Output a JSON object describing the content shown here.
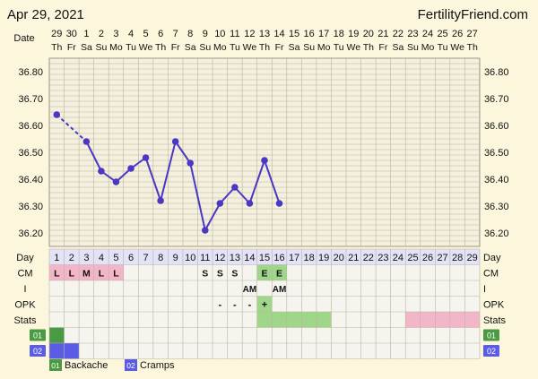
{
  "header": {
    "date_text": "Apr 29, 2021",
    "site": "FertilityFriend.com",
    "date_label": "Date"
  },
  "days": {
    "dates": [
      "29",
      "30",
      "1",
      "2",
      "3",
      "4",
      "5",
      "6",
      "7",
      "8",
      "9",
      "10",
      "11",
      "12",
      "13",
      "14",
      "15",
      "16",
      "17",
      "18",
      "19",
      "20",
      "21",
      "22",
      "23",
      "24",
      "25",
      "26",
      "27"
    ],
    "weekdays": [
      "Th",
      "Fr",
      "Sa",
      "Su",
      "Mo",
      "Tu",
      "We",
      "Th",
      "Fr",
      "Sa",
      "Su",
      "Mo",
      "Tu",
      "We",
      "Th",
      "Fr",
      "Sa",
      "Su",
      "Mo",
      "Tu",
      "We",
      "Th",
      "Fr",
      "Sa",
      "Su",
      "Mo",
      "Tu",
      "We",
      "Th"
    ],
    "cycle_days": [
      "1",
      "2",
      "3",
      "4",
      "5",
      "6",
      "7",
      "8",
      "9",
      "10",
      "11",
      "12",
      "13",
      "14",
      "15",
      "16",
      "17",
      "18",
      "19",
      "20",
      "21",
      "22",
      "23",
      "24",
      "25",
      "26",
      "27",
      "28",
      "29"
    ]
  },
  "chart_data": {
    "type": "line",
    "ylim": [
      36.15,
      36.85
    ],
    "y_ticks": [
      "36.80",
      "36.70",
      "36.60",
      "36.50",
      "36.40",
      "36.30",
      "36.20"
    ],
    "y_tick_values": [
      36.8,
      36.7,
      36.6,
      36.5,
      36.4,
      36.3,
      36.2
    ],
    "series": [
      {
        "x": [
          1,
          3,
          4,
          5,
          6,
          7,
          8,
          9,
          10,
          11,
          12,
          13,
          14,
          15,
          16
        ],
        "values": [
          36.64,
          36.54,
          36.43,
          36.39,
          36.44,
          36.48,
          36.32,
          36.54,
          36.46,
          36.21,
          36.31,
          36.37,
          36.31,
          36.47,
          36.31
        ],
        "segments": [
          "dashed",
          "solid",
          "solid",
          "solid",
          "solid",
          "solid",
          "solid",
          "solid",
          "solid",
          "solid",
          "solid",
          "solid",
          "solid",
          "solid"
        ]
      }
    ]
  },
  "rows": {
    "day_label": "Day",
    "cm_label": "CM",
    "i_label": "I",
    "opk_label": "OPK",
    "stats_label": "Stats",
    "cm_cells": [
      {
        "day": 1,
        "text": "L",
        "color": "#f2b6c8"
      },
      {
        "day": 2,
        "text": "L",
        "color": "#f2b6c8"
      },
      {
        "day": 3,
        "text": "M",
        "color": "#f2b6c8"
      },
      {
        "day": 4,
        "text": "L",
        "color": "#f2b6c8"
      },
      {
        "day": 5,
        "text": "L",
        "color": "#f2b6c8"
      },
      {
        "day": 11,
        "text": "S",
        "color": ""
      },
      {
        "day": 12,
        "text": "S",
        "color": ""
      },
      {
        "day": 13,
        "text": "S",
        "color": ""
      },
      {
        "day": 15,
        "text": "E",
        "color": "#9fd68a"
      },
      {
        "day": 16,
        "text": "E",
        "color": "#9fd68a"
      }
    ],
    "i_cells": [
      {
        "day": 14,
        "text": "AM"
      },
      {
        "day": 16,
        "text": "AM"
      }
    ],
    "opk_cells": [
      {
        "day": 12,
        "text": "-",
        "color": ""
      },
      {
        "day": 13,
        "text": "-",
        "color": ""
      },
      {
        "day": 14,
        "text": "-",
        "color": ""
      },
      {
        "day": 15,
        "text": "+",
        "color": "#9fd68a"
      }
    ],
    "stats_spans": [
      {
        "from": 15,
        "to": 19,
        "color": "#9fd68a"
      },
      {
        "from": 25,
        "to": 29,
        "color": "#f2b6c8"
      }
    ],
    "symptom_rows": [
      {
        "code": "01",
        "color": "#4a9a44",
        "days": [
          1
        ]
      },
      {
        "code": "02",
        "color": "#5b5ce6",
        "days": [
          1,
          2
        ]
      }
    ]
  },
  "legend": [
    {
      "code": "01",
      "label": "Backache",
      "color": "#4a9a44"
    },
    {
      "code": "02",
      "label": "Cramps",
      "color": "#5b5ce6"
    }
  ]
}
